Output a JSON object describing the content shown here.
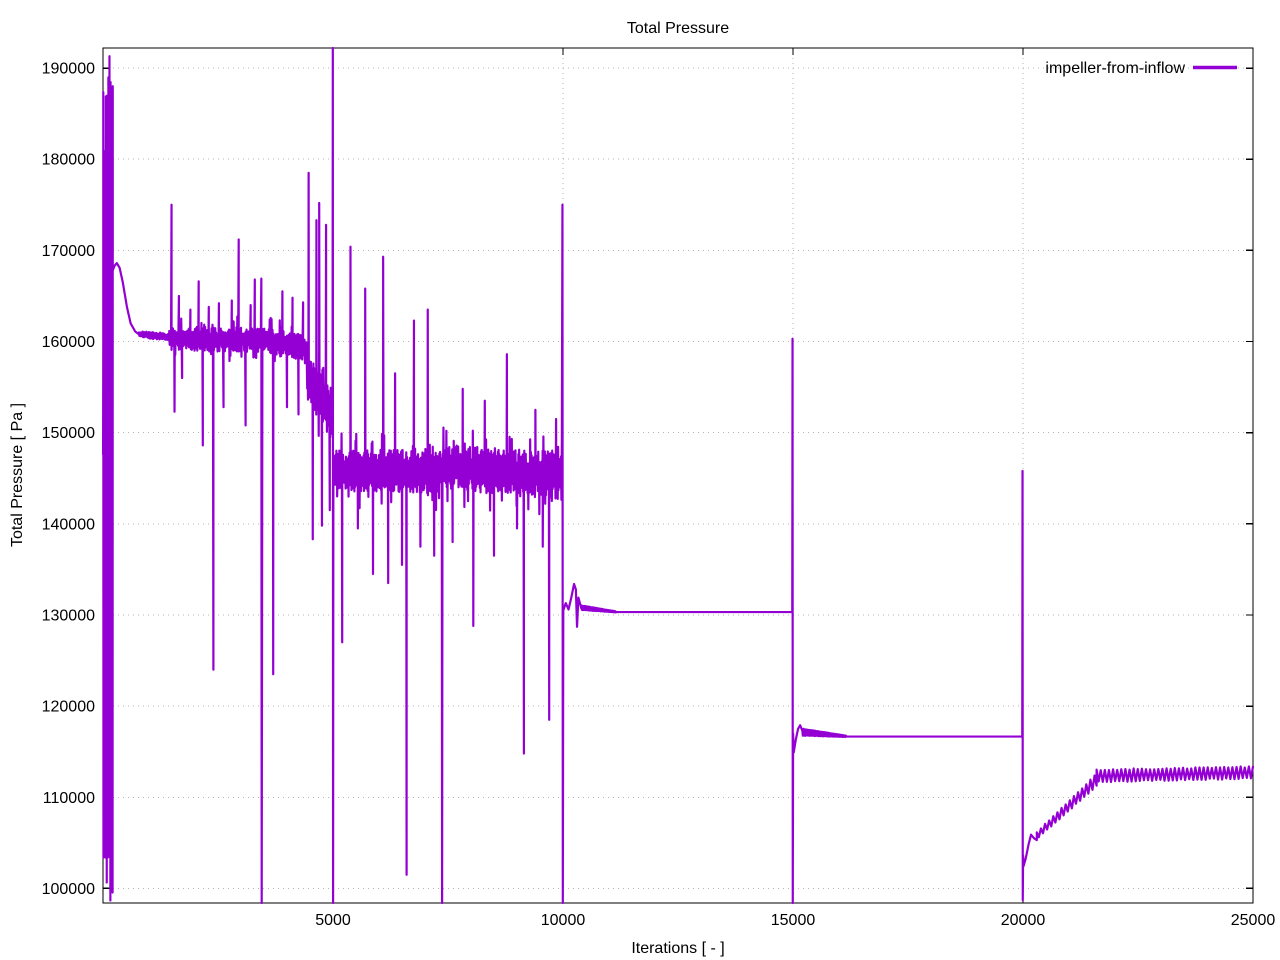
{
  "chart_data": {
    "type": "line",
    "title": "Total Pressure",
    "xlabel": "Iterations [ - ]",
    "ylabel": "Total Pressure [ Pa ]",
    "legend_position": "top-right",
    "grid": "dotted",
    "background": "#ffffff",
    "axis_color": "#000000",
    "grid_color": "#b4b4b4",
    "xlim": [
      0,
      25000
    ],
    "ylim": [
      98400,
      192200
    ],
    "xticks": [
      5000,
      10000,
      15000,
      20000,
      25000
    ],
    "yticks": [
      100000,
      110000,
      120000,
      130000,
      140000,
      150000,
      160000,
      170000,
      180000,
      190000
    ],
    "series": [
      {
        "name": "impeller-from-inflow",
        "color": "#9400d3",
        "line_width": 2.2,
        "segments": [
          {
            "type": "path",
            "points": [
              [
                2,
                147600
              ],
              [
                6,
                160000
              ]
            ]
          },
          {
            "type": "zigzag",
            "x0": 6,
            "x1": 212,
            "lo": 98400,
            "hi": 192200,
            "step": 4
          },
          {
            "type": "path",
            "points": [
              [
                212,
                167800
              ],
              [
                250,
                168300
              ],
              [
                300,
                168600
              ],
              [
                360,
                168100
              ],
              [
                430,
                166500
              ],
              [
                520,
                163800
              ],
              [
                600,
                162000
              ],
              [
                700,
                161100
              ],
              [
                780,
                160800
              ]
            ]
          },
          {
            "type": "noise",
            "x0": 780,
            "x1": 1440,
            "base": [
              160800,
              160500
            ],
            "amp": [
              380,
              420
            ],
            "step": 10
          },
          {
            "type": "noise",
            "x0": 1440,
            "x1": 3420,
            "base": [
              160300,
              160200
            ],
            "amp": [
              1300,
              1400
            ],
            "step": 10,
            "boost": true,
            "spikes": [
              [
                1490,
                175000
              ],
              [
                1555,
                152300
              ],
              [
                1650,
                165000
              ],
              [
                1720,
                156000
              ],
              [
                1900,
                163500
              ],
              [
                2080,
                166600
              ],
              [
                2170,
                148600
              ],
              [
                2300,
                163800
              ],
              [
                2400,
                124000
              ],
              [
                2520,
                164200
              ],
              [
                2620,
                152800
              ],
              [
                2800,
                164500
              ],
              [
                2950,
                171200
              ],
              [
                3100,
                150800
              ],
              [
                3210,
                164000
              ],
              [
                3300,
                166800
              ]
            ]
          },
          {
            "type": "path",
            "points": [
              [
                3430,
                160300
              ],
              [
                3442,
                166900
              ],
              [
                3450,
                98400
              ],
              [
                3465,
                159500
              ]
            ]
          },
          {
            "type": "noise",
            "x0": 3465,
            "x1": 4430,
            "base": [
              160200,
              159200
            ],
            "amp": [
              1400,
              1500
            ],
            "step": 10,
            "boost": true,
            "spikes": [
              [
                3700,
                123500
              ],
              [
                3900,
                165500
              ],
              [
                4000,
                152800
              ],
              [
                4120,
                164800
              ],
              [
                4250,
                152000
              ],
              [
                4350,
                164300
              ]
            ]
          },
          {
            "type": "noise",
            "x0": 4430,
            "x1": 4985,
            "base": [
              156000,
              152000
            ],
            "amp": [
              2500,
              3000
            ],
            "step": 9,
            "boost": true,
            "spikes": [
              [
                4470,
                178500
              ],
              [
                4560,
                138300
              ],
              [
                4640,
                173300
              ],
              [
                4700,
                175200
              ],
              [
                4760,
                139800
              ],
              [
                4850,
                172800
              ],
              [
                4930,
                141500
              ]
            ]
          },
          {
            "type": "path",
            "points": [
              [
                4990,
                155000
              ],
              [
                4996,
                192200
              ],
              [
                5002,
                98400
              ],
              [
                5008,
                146200
              ]
            ]
          },
          {
            "type": "noise",
            "x0": 5010,
            "x1": 7360,
            "base": [
              145900,
              145700
            ],
            "amp": [
              2200,
              2400
            ],
            "step": 8,
            "boost": true,
            "spikes": [
              [
                5090,
                143000
              ],
              [
                5200,
                127000
              ],
              [
                5380,
                170400
              ],
              [
                5540,
                139500
              ],
              [
                5700,
                165800
              ],
              [
                5870,
                134500
              ],
              [
                6090,
                169300
              ],
              [
                6200,
                133500
              ],
              [
                6350,
                156500
              ],
              [
                6500,
                135500
              ],
              [
                6600,
                101500
              ],
              [
                6760,
                162300
              ],
              [
                6900,
                137500
              ],
              [
                7060,
                163500
              ],
              [
                7200,
                136500
              ]
            ]
          },
          {
            "type": "path",
            "points": [
              [
                7365,
                144000
              ],
              [
                7372,
                98400
              ],
              [
                7380,
                145500
              ]
            ]
          },
          {
            "type": "noise",
            "x0": 7385,
            "x1": 9965,
            "base": [
              146200,
              145300
            ],
            "amp": [
              2400,
              2700
            ],
            "step": 8,
            "boost": true,
            "spikes": [
              [
                7600,
                138000
              ],
              [
                7820,
                154800
              ],
              [
                8050,
                128800
              ],
              [
                8300,
                153500
              ],
              [
                8500,
                136500
              ],
              [
                8780,
                158600
              ],
              [
                9000,
                139500
              ],
              [
                9150,
                114800
              ],
              [
                9400,
                152500
              ],
              [
                9560,
                137500
              ],
              [
                9700,
                118500
              ],
              [
                9850,
                151500
              ]
            ]
          },
          {
            "type": "path",
            "points": [
              [
                9975,
                149000
              ],
              [
                9988,
                175000
              ],
              [
                9996,
                98400
              ],
              [
                10006,
                130500
              ]
            ]
          },
          {
            "type": "path",
            "points": [
              [
                10006,
                130500
              ],
              [
                10060,
                131300
              ],
              [
                10120,
                130600
              ],
              [
                10180,
                131900
              ],
              [
                10240,
                133400
              ],
              [
                10280,
                132800
              ],
              [
                10305,
                128700
              ],
              [
                10335,
                131900
              ],
              [
                10400,
                130700
              ]
            ]
          },
          {
            "type": "noise",
            "x0": 10400,
            "x1": 11150,
            "base": [
              130800,
              130340
            ],
            "amp": [
              260,
              60
            ],
            "step": 12,
            "jitter": false
          },
          {
            "type": "path",
            "points": [
              [
                11150,
                130320
              ],
              [
                14984,
                130320
              ],
              [
                14990,
                160300
              ],
              [
                14995,
                98400
              ],
              [
                15002,
                117000
              ]
            ]
          },
          {
            "type": "path",
            "points": [
              [
                15002,
                117000
              ],
              [
                15015,
                114900
              ],
              [
                15060,
                116300
              ],
              [
                15110,
                117500
              ],
              [
                15155,
                117900
              ],
              [
                15200,
                117350
              ]
            ]
          },
          {
            "type": "noise",
            "x0": 15200,
            "x1": 16150,
            "base": [
              117150,
              116690
            ],
            "amp": [
              400,
              80
            ],
            "step": 14,
            "jitter": false
          },
          {
            "type": "path",
            "points": [
              [
                16150,
                116660
              ],
              [
                19984,
                116660
              ],
              [
                19990,
                145800
              ],
              [
                19995,
                98700
              ],
              [
                20002,
                103600
              ]
            ]
          },
          {
            "type": "path",
            "points": [
              [
                20002,
                103600
              ],
              [
                20012,
                102450
              ],
              [
                20060,
                103300
              ],
              [
                20120,
                104800
              ],
              [
                20175,
                105900
              ],
              [
                20240,
                105500
              ],
              [
                20300,
                105300
              ]
            ]
          },
          {
            "type": "noise",
            "x0": 20300,
            "x1": 21600,
            "base": [
              105800,
              111900
            ],
            "amp": [
              420,
              720
            ],
            "step": 45,
            "jitter": false
          },
          {
            "type": "noise",
            "x0": 21600,
            "x1": 25000,
            "base": [
              112350,
              112720
            ],
            "amp": [
              730,
              700
            ],
            "step": 45,
            "jitter": false
          }
        ]
      }
    ]
  }
}
